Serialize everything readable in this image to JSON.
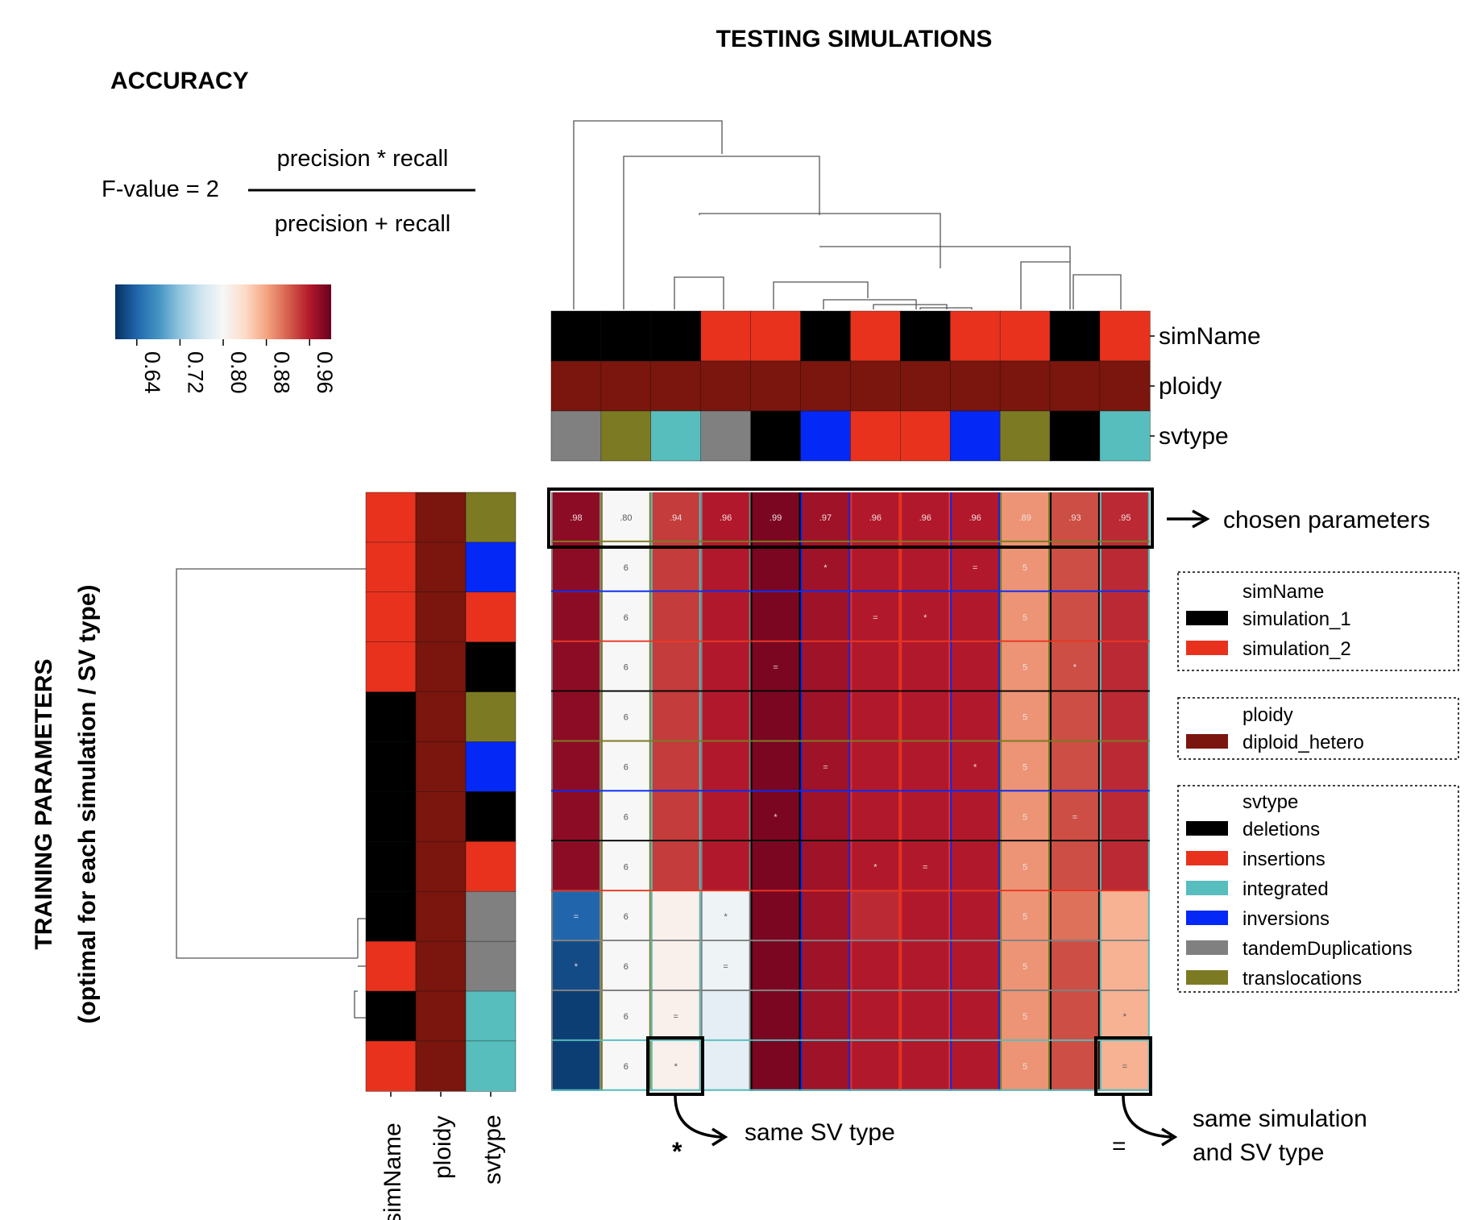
{
  "header": {
    "accuracy_title": "ACCURACY",
    "formula_lhs": "F-value = 2",
    "formula_numerator": "precision * recall",
    "formula_denominator": "precision + recall",
    "col_title": "TESTING SIMULATIONS",
    "row_title": "TRAINING PARAMETERS",
    "row_subtitle": "(optimal for each simulation / SV type)"
  },
  "colorbar": {
    "ticks": [
      "0.64",
      "0.72",
      "0.80",
      "0.88",
      "0.96"
    ],
    "vmin": 0.6,
    "vmax": 1.0
  },
  "annotations": {
    "chosen": "chosen parameters",
    "same_sv_symbol": "*",
    "same_sv_text": "same SV type",
    "same_sim_symbol": "=",
    "same_sim_line1": "same simulation",
    "same_sim_line2": "and SV type"
  },
  "legend": {
    "simName": {
      "title": "simName",
      "items": [
        {
          "label": "simulation_1",
          "color": "#000000"
        },
        {
          "label": "simulation_2",
          "color": "#e8321e"
        }
      ]
    },
    "ploidy": {
      "title": "ploidy",
      "items": [
        {
          "label": "diploid_hetero",
          "color": "#7a160d"
        }
      ]
    },
    "svtype": {
      "title": "svtype",
      "items": [
        {
          "label": "deletions",
          "color": "#000000"
        },
        {
          "label": "insertions",
          "color": "#e8321e"
        },
        {
          "label": "integrated",
          "color": "#57bdbd"
        },
        {
          "label": "inversions",
          "color": "#0428f5"
        },
        {
          "label": "tandemDuplications",
          "color": "#808080"
        },
        {
          "label": "translocations",
          "color": "#7d7a24"
        }
      ]
    }
  },
  "colors": {
    "simulation_1": "#000000",
    "simulation_2": "#e8321e",
    "diploid_hetero": "#7a160d",
    "deletions": "#000000",
    "insertions": "#e8321e",
    "integrated": "#57bdbd",
    "inversions": "#0428f5",
    "tandemDuplications": "#808080",
    "translocations": "#7d7a24"
  },
  "chart_data": {
    "type": "heatmap",
    "title": "",
    "col_track_labels": [
      "simName",
      "ploidy",
      "svtype"
    ],
    "row_track_labels": [
      "simName",
      "ploidy",
      "svtype"
    ],
    "columns": [
      {
        "simName": "simulation_1",
        "ploidy": "diploid_hetero",
        "svtype": "tandemDuplications"
      },
      {
        "simName": "simulation_1",
        "ploidy": "diploid_hetero",
        "svtype": "translocations"
      },
      {
        "simName": "simulation_1",
        "ploidy": "diploid_hetero",
        "svtype": "integrated"
      },
      {
        "simName": "simulation_2",
        "ploidy": "diploid_hetero",
        "svtype": "tandemDuplications"
      },
      {
        "simName": "simulation_2",
        "ploidy": "diploid_hetero",
        "svtype": "deletions"
      },
      {
        "simName": "simulation_1",
        "ploidy": "diploid_hetero",
        "svtype": "inversions"
      },
      {
        "simName": "simulation_2",
        "ploidy": "diploid_hetero",
        "svtype": "insertions"
      },
      {
        "simName": "simulation_1",
        "ploidy": "diploid_hetero",
        "svtype": "insertions"
      },
      {
        "simName": "simulation_2",
        "ploidy": "diploid_hetero",
        "svtype": "inversions"
      },
      {
        "simName": "simulation_2",
        "ploidy": "diploid_hetero",
        "svtype": "translocations"
      },
      {
        "simName": "simulation_1",
        "ploidy": "diploid_hetero",
        "svtype": "deletions"
      },
      {
        "simName": "simulation_2",
        "ploidy": "diploid_hetero",
        "svtype": "integrated"
      }
    ],
    "rows": [
      {
        "simName": "simulation_2",
        "ploidy": "diploid_hetero",
        "svtype": "translocations"
      },
      {
        "simName": "simulation_2",
        "ploidy": "diploid_hetero",
        "svtype": "inversions"
      },
      {
        "simName": "simulation_2",
        "ploidy": "diploid_hetero",
        "svtype": "insertions"
      },
      {
        "simName": "simulation_2",
        "ploidy": "diploid_hetero",
        "svtype": "deletions"
      },
      {
        "simName": "simulation_1",
        "ploidy": "diploid_hetero",
        "svtype": "translocations"
      },
      {
        "simName": "simulation_1",
        "ploidy": "diploid_hetero",
        "svtype": "inversions"
      },
      {
        "simName": "simulation_1",
        "ploidy": "diploid_hetero",
        "svtype": "deletions"
      },
      {
        "simName": "simulation_1",
        "ploidy": "diploid_hetero",
        "svtype": "insertions"
      },
      {
        "simName": "simulation_1",
        "ploidy": "diploid_hetero",
        "svtype": "tandemDuplications"
      },
      {
        "simName": "simulation_2",
        "ploidy": "diploid_hetero",
        "svtype": "tandemDuplications"
      },
      {
        "simName": "simulation_1",
        "ploidy": "diploid_hetero",
        "svtype": "integrated"
      },
      {
        "simName": "simulation_2",
        "ploidy": "diploid_hetero",
        "svtype": "integrated"
      }
    ],
    "values": [
      [
        0.98,
        0.8,
        0.94,
        0.96,
        0.99,
        0.97,
        0.96,
        0.96,
        0.96,
        0.89,
        0.93,
        0.95
      ],
      [
        0.98,
        0.8,
        0.94,
        0.96,
        0.99,
        0.97,
        0.96,
        0.96,
        0.96,
        0.89,
        0.93,
        0.95
      ],
      [
        0.98,
        0.8,
        0.94,
        0.96,
        0.99,
        0.97,
        0.96,
        0.96,
        0.96,
        0.89,
        0.93,
        0.95
      ],
      [
        0.98,
        0.8,
        0.94,
        0.96,
        0.99,
        0.97,
        0.96,
        0.96,
        0.96,
        0.89,
        0.93,
        0.95
      ],
      [
        0.98,
        0.8,
        0.94,
        0.96,
        0.99,
        0.97,
        0.96,
        0.96,
        0.96,
        0.89,
        0.93,
        0.95
      ],
      [
        0.98,
        0.8,
        0.94,
        0.96,
        0.99,
        0.97,
        0.96,
        0.96,
        0.96,
        0.89,
        0.93,
        0.95
      ],
      [
        0.98,
        0.8,
        0.94,
        0.96,
        0.99,
        0.97,
        0.96,
        0.96,
        0.96,
        0.89,
        0.93,
        0.95
      ],
      [
        0.98,
        0.8,
        0.94,
        0.96,
        0.99,
        0.97,
        0.96,
        0.96,
        0.96,
        0.89,
        0.93,
        0.95
      ],
      [
        0.64,
        0.8,
        0.81,
        0.79,
        0.99,
        0.97,
        0.95,
        0.96,
        0.96,
        0.89,
        0.91,
        0.87
      ],
      [
        0.62,
        0.8,
        0.81,
        0.79,
        0.99,
        0.97,
        0.96,
        0.96,
        0.96,
        0.89,
        0.93,
        0.87
      ],
      [
        0.61,
        0.8,
        0.81,
        0.78,
        0.99,
        0.97,
        0.96,
        0.96,
        0.96,
        0.89,
        0.93,
        0.87
      ],
      [
        0.61,
        0.8,
        0.81,
        0.78,
        0.99,
        0.97,
        0.96,
        0.96,
        0.96,
        0.89,
        0.93,
        0.87
      ]
    ],
    "cell_labels": [
      [
        ".98",
        ".80",
        ".94",
        ".96",
        ".99",
        ".97",
        ".96",
        ".96",
        ".96",
        ".89",
        ".93",
        ".95"
      ],
      [
        "",
        "6",
        "",
        "",
        "",
        "*",
        "",
        "",
        "=",
        "5",
        "",
        ""
      ],
      [
        "",
        "6",
        "",
        "",
        "",
        "",
        "=",
        "*",
        "",
        "5",
        "",
        ""
      ],
      [
        "",
        "6",
        "",
        "",
        "=",
        "",
        "",
        "",
        "",
        "5",
        "*",
        ""
      ],
      [
        "",
        "6",
        "",
        "",
        "",
        "",
        "",
        "",
        "",
        "5",
        "",
        ""
      ],
      [
        "",
        "6",
        "",
        "",
        "",
        "=",
        "",
        "",
        "*",
        "5",
        "",
        ""
      ],
      [
        "",
        "6",
        "",
        "",
        "*",
        "",
        "",
        "",
        "",
        "5",
        "=",
        ""
      ],
      [
        "",
        "6",
        "",
        "",
        "",
        "",
        "*",
        "=",
        "",
        "5",
        "",
        ""
      ],
      [
        "=",
        "6",
        "",
        "*",
        "",
        "",
        "",
        "",
        "",
        "5",
        "",
        ""
      ],
      [
        "*",
        "6",
        "",
        "=",
        "",
        "",
        "",
        "",
        "",
        "5",
        "",
        ""
      ],
      [
        "",
        "6",
        "=",
        "",
        "",
        "",
        "",
        "",
        "",
        "5",
        "",
        "*"
      ],
      [
        "",
        "6",
        "*",
        "",
        "",
        "",
        "",
        "",
        "",
        "5",
        "",
        "="
      ]
    ],
    "colormap": "RdBu_r",
    "vmin": 0.6,
    "vmax": 1.0
  }
}
